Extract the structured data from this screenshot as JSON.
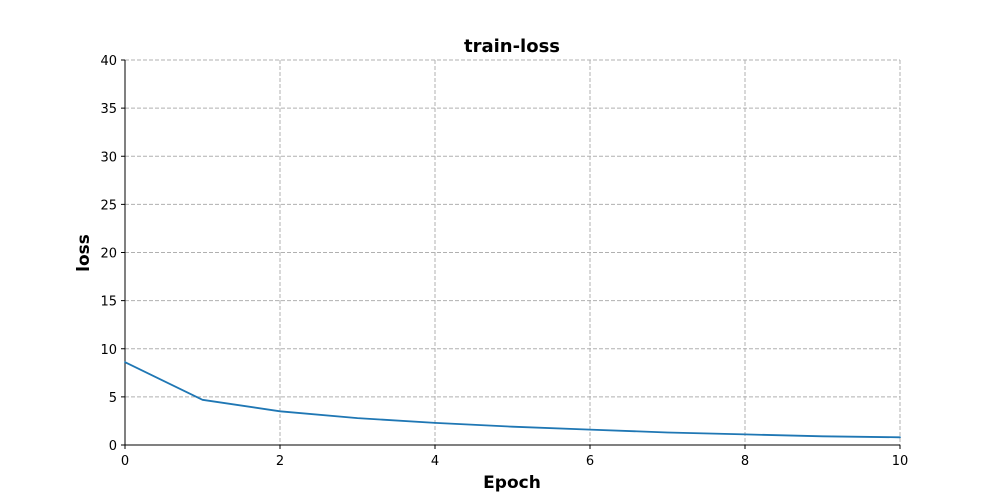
{
  "chart_data": {
    "type": "line",
    "title": "train-loss",
    "xlabel": "Epoch",
    "ylabel": "loss",
    "xlim": [
      0,
      10
    ],
    "ylim": [
      0,
      40
    ],
    "xticks": [
      0,
      2,
      4,
      6,
      8,
      10
    ],
    "yticks": [
      0,
      5,
      10,
      15,
      20,
      25,
      30,
      35,
      40
    ],
    "grid": true,
    "series": [
      {
        "color": "#1f77b4",
        "x": [
          0,
          1,
          2,
          3,
          4,
          5,
          6,
          7,
          8,
          9,
          10
        ],
        "y": [
          8.6,
          4.7,
          3.5,
          2.8,
          2.3,
          1.9,
          1.6,
          1.3,
          1.1,
          0.9,
          0.8
        ]
      }
    ]
  }
}
